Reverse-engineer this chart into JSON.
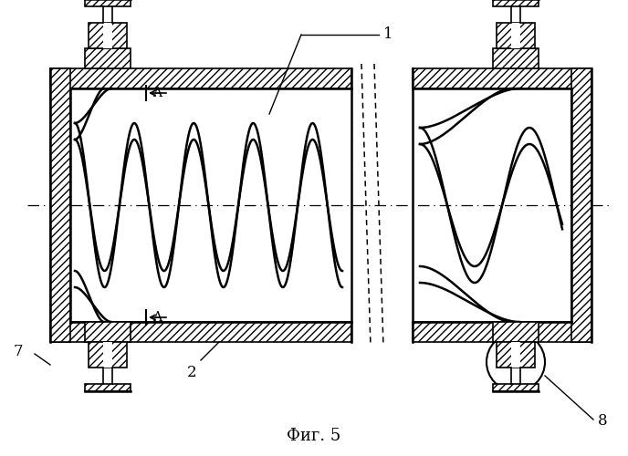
{
  "bg_color": "#ffffff",
  "line_color": "#000000",
  "fig_width": 6.88,
  "fig_height": 5.0,
  "dpi": 100,
  "caption": "Фиг. 5"
}
